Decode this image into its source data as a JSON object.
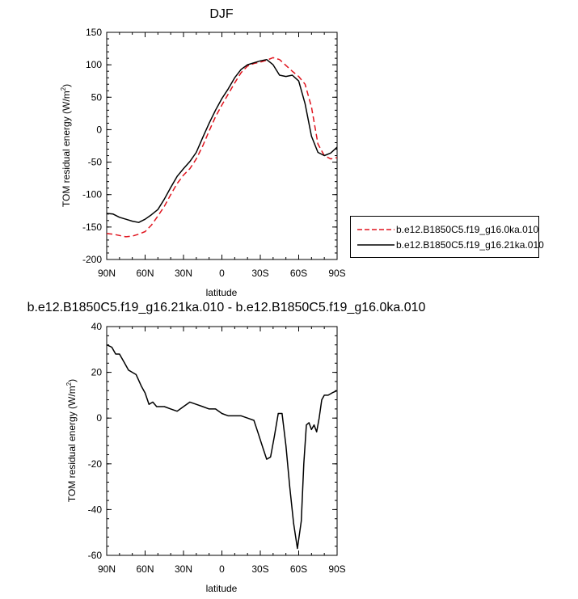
{
  "chart_data": [
    {
      "type": "line",
      "title": "DJF",
      "xlabel": "latitude",
      "ylabel": "TOM residual energy (W/m2)",
      "ylabel_main": "TOM residual energy (W/m",
      "ylabel_sup": "2",
      "ylabel_close": ")",
      "x_ticks": [
        "90N",
        "60N",
        "30N",
        "0",
        "30S",
        "60S",
        "90S"
      ],
      "y_ticks": [
        "150",
        "100",
        "50",
        "0",
        "-50",
        "-100",
        "-150",
        "-200"
      ],
      "xlim": [
        90,
        -90
      ],
      "ylim": [
        -200,
        150
      ],
      "series": [
        {
          "name": "b.e12.B1850C5.f19_g16.0ka.010",
          "color": "#e0141e",
          "dash": "dashed",
          "x": [
            90,
            85,
            80,
            75,
            70,
            65,
            60,
            55,
            50,
            45,
            40,
            35,
            30,
            25,
            20,
            15,
            10,
            5,
            0,
            -5,
            -10,
            -15,
            -20,
            -25,
            -30,
            -35,
            -40,
            -45,
            -50,
            -55,
            -60,
            -65,
            -70,
            -75,
            -80,
            -85,
            -90
          ],
          "y": [
            -160,
            -161,
            -163,
            -165,
            -164,
            -161,
            -157,
            -147,
            -133,
            -118,
            -100,
            -83,
            -70,
            -60,
            -45,
            -25,
            -2,
            20,
            38,
            55,
            72,
            88,
            98,
            102,
            104,
            107,
            111,
            108,
            99,
            90,
            82,
            70,
            35,
            -22,
            -40,
            -45,
            -43
          ]
        },
        {
          "name": "b.e12.B1850C5.f19_g16.21ka.010",
          "color": "#000000",
          "dash": "solid",
          "x": [
            90,
            85,
            80,
            75,
            70,
            65,
            60,
            55,
            50,
            45,
            40,
            35,
            30,
            25,
            20,
            15,
            10,
            5,
            0,
            -5,
            -10,
            -15,
            -20,
            -25,
            -30,
            -35,
            -40,
            -45,
            -50,
            -55,
            -60,
            -65,
            -70,
            -75,
            -80,
            -85,
            -90
          ],
          "y": [
            -129,
            -130,
            -135,
            -138,
            -141,
            -143,
            -138,
            -131,
            -123,
            -107,
            -89,
            -72,
            -60,
            -49,
            -35,
            -12,
            10,
            30,
            48,
            63,
            80,
            93,
            100,
            103,
            106,
            108,
            100,
            84,
            82,
            84,
            75,
            40,
            -10,
            -35,
            -40,
            -36,
            -27
          ]
        }
      ],
      "legend_position": "right"
    },
    {
      "type": "line",
      "title": "b.e12.B1850C5.f19_g16.21ka.010 - b.e12.B1850C5.f19_g16.0ka.010",
      "xlabel": "latitude",
      "ylabel": "TOM residual energy (W/m2)",
      "ylabel_main": "TOM residual energy (W/m",
      "ylabel_sup": "2",
      "ylabel_close": ")",
      "x_ticks": [
        "90N",
        "60N",
        "30N",
        "0",
        "30S",
        "60S",
        "90S"
      ],
      "y_ticks": [
        "40",
        "20",
        "0",
        "-20",
        "-40",
        "-60"
      ],
      "xlim": [
        90,
        -90
      ],
      "ylim": [
        -60,
        40
      ],
      "series": [
        {
          "name": "",
          "color": "#000000",
          "dash": "solid",
          "x": [
            90,
            86,
            83,
            80,
            76,
            73,
            70,
            67,
            63,
            60,
            57,
            54,
            51,
            48,
            45,
            40,
            35,
            30,
            25,
            20,
            15,
            10,
            5,
            0,
            -5,
            -10,
            -15,
            -20,
            -25,
            -28,
            -32,
            -35,
            -38,
            -41,
            -44,
            -47,
            -50,
            -53,
            -56,
            -59,
            -62,
            -64,
            -66,
            -68,
            -70,
            -72,
            -74,
            -76,
            -78,
            -80,
            -83,
            -86,
            -90
          ],
          "y": [
            32,
            31,
            28,
            28,
            24,
            21,
            20,
            19,
            14,
            11,
            6,
            7,
            5,
            5,
            5,
            4,
            3,
            5,
            7,
            6,
            5,
            4,
            4,
            2,
            1,
            1,
            1,
            0,
            -1,
            -6,
            -13,
            -18,
            -17,
            -8,
            2,
            2,
            -12,
            -30,
            -46,
            -57,
            -45,
            -20,
            -3,
            -2,
            -5,
            -3,
            -6,
            0,
            8,
            10,
            10,
            11,
            12
          ]
        }
      ]
    }
  ]
}
